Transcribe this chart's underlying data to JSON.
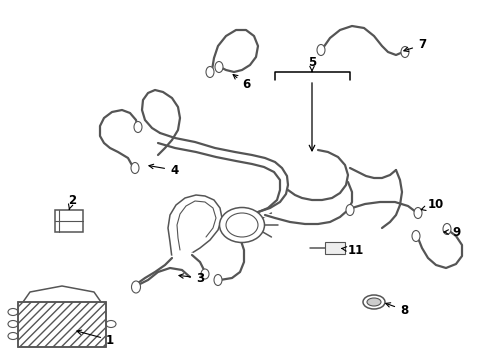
{
  "bg_color": "#ffffff",
  "line_color": "#555555",
  "label_color": "#000000",
  "lw_thin": 0.8,
  "lw_med": 1.1,
  "lw_tube": 1.6
}
